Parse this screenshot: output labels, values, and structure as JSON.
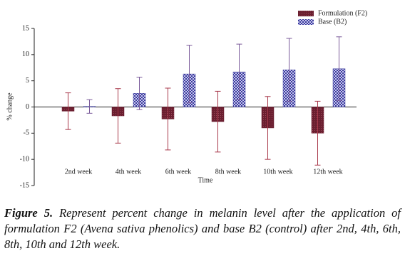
{
  "chart_data": {
    "type": "bar",
    "categories": [
      "2nd week",
      "4th week",
      "6th week",
      "8th week",
      "10th week",
      "12th week"
    ],
    "series": [
      {
        "name": "Formulation (F2)",
        "color": "#6b1f30",
        "errcolor": "#a8384a",
        "values": [
          -0.8,
          -1.7,
          -2.3,
          -2.8,
          -4.0,
          -5.0
        ],
        "errors": [
          3.5,
          5.2,
          5.9,
          5.8,
          6.0,
          6.1
        ]
      },
      {
        "name": "Base (B2)",
        "color": "#3b3b9c",
        "errcolor": "#7a5a9a",
        "values": [
          0.1,
          2.6,
          6.3,
          6.7,
          7.1,
          7.3
        ],
        "errors": [
          1.3,
          3.1,
          5.5,
          5.3,
          6.0,
          6.1
        ]
      }
    ],
    "xlabel": "Time",
    "ylabel": "% change",
    "ylim": [
      -15,
      15
    ],
    "yticks": [
      -15,
      -10,
      -5,
      0,
      5,
      10,
      15
    ],
    "legend": "top-right"
  },
  "caption": {
    "label": "Figure 5.",
    "text": "Represent percent change in melanin level after the application of formulation F2 (Avena sativa phenolics) and base B2 (control) after 2nd, 4th, 6th, 8th, 10th and 12th week."
  }
}
